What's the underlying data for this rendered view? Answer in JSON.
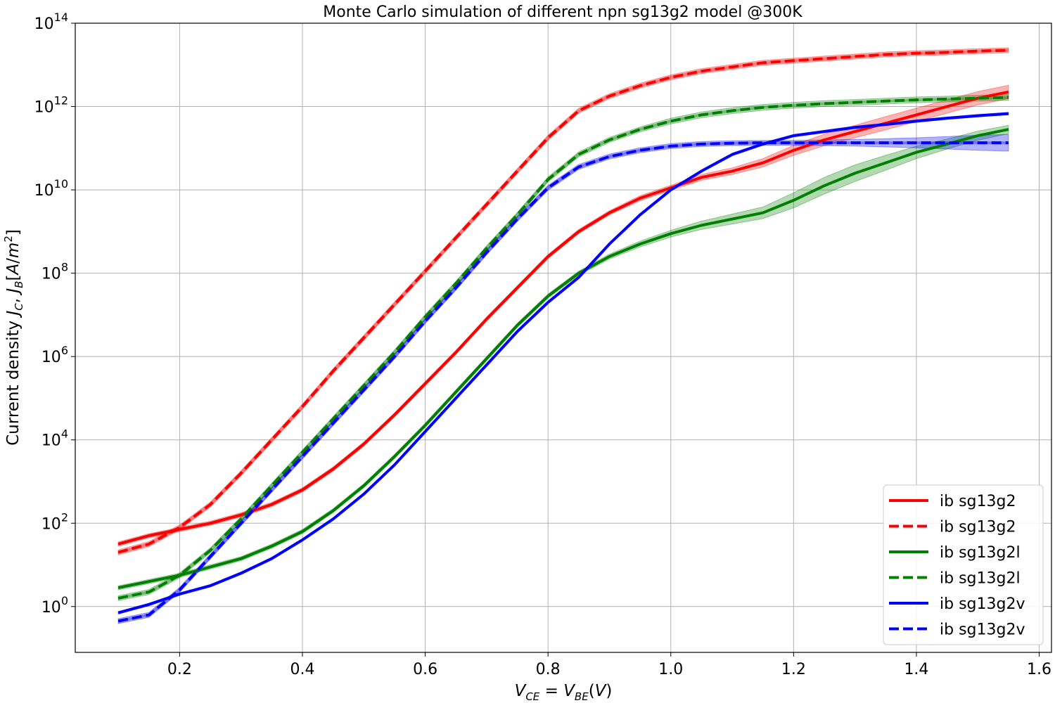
{
  "chart_data": {
    "type": "line",
    "title": "Monte Carlo simulation of different npn sg13g2 model @300K",
    "xlabel": "V_CE = V_BE(V)",
    "ylabel": "Current density J_C, J_B[A/m^2]",
    "yscale": "log",
    "xlim": [
      0.03,
      1.62
    ],
    "ylim_exponent": [
      -1.1,
      14.0
    ],
    "grid": true,
    "legend_position": "lower right",
    "x_ticks": [
      0.2,
      0.4,
      0.6,
      0.8,
      1.0,
      1.2,
      1.4,
      1.6
    ],
    "x_tick_labels": [
      "0.2",
      "0.4",
      "0.6",
      "0.8",
      "1.0",
      "1.2",
      "1.4",
      "1.6"
    ],
    "y_tick_exponents": [
      0,
      2,
      4,
      6,
      8,
      10,
      12,
      14
    ],
    "y_tick_base": "10",
    "x": [
      0.1,
      0.15,
      0.2,
      0.25,
      0.3,
      0.35,
      0.4,
      0.45,
      0.5,
      0.55,
      0.6,
      0.65,
      0.7,
      0.75,
      0.8,
      0.85,
      0.9,
      0.95,
      1.0,
      1.05,
      1.1,
      1.15,
      1.2,
      1.25,
      1.3,
      1.35,
      1.4,
      1.45,
      1.5,
      1.55
    ],
    "series": [
      {
        "name": "ib sg13g2",
        "color": "#ff0000",
        "dash": "solid",
        "log10_values": [
          1.5,
          1.7,
          1.85,
          2.0,
          2.2,
          2.45,
          2.8,
          3.3,
          3.9,
          4.6,
          5.35,
          6.1,
          6.9,
          7.65,
          8.4,
          9.0,
          9.45,
          9.8,
          10.05,
          10.3,
          10.45,
          10.65,
          10.95,
          11.2,
          11.4,
          11.6,
          11.8,
          12.0,
          12.2,
          12.35
        ],
        "band_log10_halfwidth": [
          0.05,
          0.05,
          0.05,
          0.05,
          0.05,
          0.05,
          0.05,
          0.05,
          0.05,
          0.05,
          0.05,
          0.05,
          0.05,
          0.05,
          0.05,
          0.05,
          0.05,
          0.06,
          0.06,
          0.07,
          0.08,
          0.1,
          0.12,
          0.14,
          0.15,
          0.16,
          0.16,
          0.16,
          0.16,
          0.16
        ]
      },
      {
        "name": "ib sg13g2",
        "color": "#ff0000",
        "dash": "dashed",
        "log10_values": [
          1.3,
          1.5,
          1.9,
          2.45,
          3.2,
          4.0,
          4.8,
          5.65,
          6.45,
          7.25,
          8.05,
          8.85,
          9.65,
          10.45,
          11.25,
          11.9,
          12.25,
          12.5,
          12.7,
          12.85,
          12.95,
          13.05,
          13.1,
          13.15,
          13.2,
          13.25,
          13.28,
          13.3,
          13.33,
          13.35
        ],
        "band_log10_halfwidth": [
          0.06,
          0.06,
          0.06,
          0.06,
          0.06,
          0.06,
          0.06,
          0.06,
          0.06,
          0.06,
          0.06,
          0.06,
          0.06,
          0.06,
          0.06,
          0.06,
          0.06,
          0.06,
          0.06,
          0.06,
          0.06,
          0.06,
          0.06,
          0.06,
          0.06,
          0.06,
          0.06,
          0.06,
          0.06,
          0.06
        ]
      },
      {
        "name": "ib sg13g2l",
        "color": "#008000",
        "dash": "solid",
        "log10_values": [
          0.45,
          0.6,
          0.75,
          0.95,
          1.15,
          1.45,
          1.8,
          2.3,
          2.9,
          3.6,
          4.35,
          5.15,
          5.95,
          6.75,
          7.45,
          8.0,
          8.4,
          8.7,
          8.95,
          9.15,
          9.3,
          9.45,
          9.75,
          10.1,
          10.4,
          10.65,
          10.9,
          11.1,
          11.3,
          11.45
        ],
        "band_log10_halfwidth": [
          0.05,
          0.05,
          0.05,
          0.05,
          0.05,
          0.05,
          0.05,
          0.05,
          0.05,
          0.05,
          0.05,
          0.05,
          0.05,
          0.05,
          0.05,
          0.05,
          0.06,
          0.07,
          0.08,
          0.1,
          0.12,
          0.14,
          0.18,
          0.2,
          0.2,
          0.18,
          0.15,
          0.12,
          0.11,
          0.1
        ]
      },
      {
        "name": "ib sg13g2l",
        "color": "#008000",
        "dash": "dashed",
        "log10_values": [
          0.2,
          0.35,
          0.75,
          1.35,
          2.1,
          2.9,
          3.7,
          4.5,
          5.3,
          6.1,
          6.95,
          7.75,
          8.6,
          9.4,
          10.25,
          10.85,
          11.2,
          11.45,
          11.65,
          11.8,
          11.9,
          11.98,
          12.03,
          12.07,
          12.1,
          12.13,
          12.16,
          12.18,
          12.2,
          12.22
        ],
        "band_log10_halfwidth": [
          0.06,
          0.06,
          0.06,
          0.06,
          0.06,
          0.06,
          0.06,
          0.06,
          0.06,
          0.06,
          0.06,
          0.06,
          0.06,
          0.06,
          0.06,
          0.06,
          0.06,
          0.06,
          0.07,
          0.07,
          0.07,
          0.07,
          0.07,
          0.07,
          0.07,
          0.07,
          0.07,
          0.07,
          0.07,
          0.07
        ]
      },
      {
        "name": "ib sg13g2v",
        "color": "#0000ff",
        "dash": "solid",
        "log10_values": [
          -0.15,
          0.05,
          0.3,
          0.5,
          0.8,
          1.15,
          1.6,
          2.1,
          2.7,
          3.4,
          4.2,
          5.0,
          5.8,
          6.6,
          7.3,
          7.9,
          8.7,
          9.4,
          10.0,
          10.45,
          10.85,
          11.1,
          11.3,
          11.4,
          11.5,
          11.57,
          11.65,
          11.72,
          11.78,
          11.83
        ],
        "band_log10_halfwidth": [
          0.03,
          0.03,
          0.03,
          0.03,
          0.03,
          0.03,
          0.03,
          0.03,
          0.03,
          0.03,
          0.03,
          0.03,
          0.03,
          0.03,
          0.03,
          0.03,
          0.03,
          0.03,
          0.03,
          0.03,
          0.03,
          0.03,
          0.03,
          0.03,
          0.03,
          0.03,
          0.03,
          0.03,
          0.03,
          0.03
        ]
      },
      {
        "name": "ib sg13g2v",
        "color": "#0000ff",
        "dash": "dashed",
        "log10_values": [
          -0.35,
          -0.2,
          0.4,
          1.2,
          2.0,
          2.8,
          3.6,
          4.4,
          5.2,
          6.0,
          6.85,
          7.65,
          8.5,
          9.3,
          10.05,
          10.55,
          10.8,
          10.95,
          11.05,
          11.1,
          11.12,
          11.13,
          11.13,
          11.13,
          11.13,
          11.13,
          11.13,
          11.13,
          11.13,
          11.13
        ],
        "band_log10_halfwidth": [
          0.06,
          0.06,
          0.06,
          0.06,
          0.06,
          0.06,
          0.06,
          0.06,
          0.06,
          0.06,
          0.06,
          0.06,
          0.06,
          0.06,
          0.06,
          0.06,
          0.06,
          0.06,
          0.06,
          0.06,
          0.06,
          0.06,
          0.06,
          0.07,
          0.08,
          0.1,
          0.12,
          0.15,
          0.18,
          0.2
        ]
      }
    ]
  }
}
